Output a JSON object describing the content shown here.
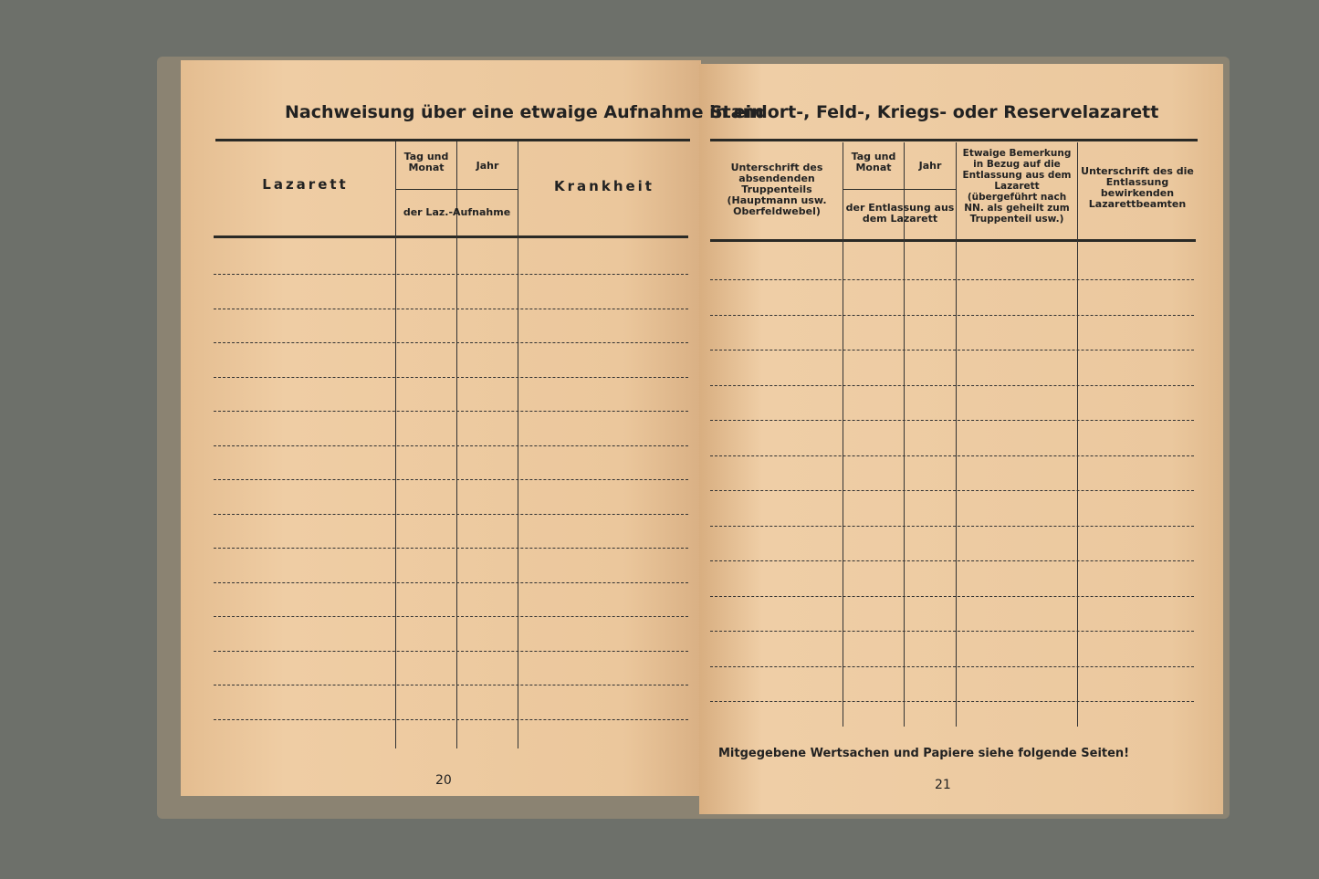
{
  "left_page": {
    "title": "Nachweisung über eine etwaige Aufnahme in ein",
    "columns": {
      "lazarett": "Lazarett",
      "tag_monat": "Tag und Monat",
      "jahr": "Jahr",
      "group": "der Laz.-Aufnahme",
      "krankheit": "Krankheit"
    },
    "page_number": "20"
  },
  "right_page": {
    "title": "Standort-, Feld-, Kriegs- oder Reservelazarett",
    "columns": {
      "unterschrift_truppe": "Unterschrift des absendenden Truppenteils (Hauptmann usw. Oberfeldwebel)",
      "tag_monat": "Tag und Monat",
      "jahr": "Jahr",
      "group": "der Entlassung aus dem Lazarett",
      "bemerkung": "Etwaige Bemerkung in Bezug auf die Entlassung aus dem Lazarett (übergeführt nach NN. als geheilt zum Truppenteil usw.)",
      "unterschrift_beamte": "Unterschrift des die Entlassung bewirkenden Lazarettbeamten"
    },
    "footer": "Mitgegebene Wertsachen und Papiere siehe folgende Seiten!",
    "page_number": "21"
  }
}
